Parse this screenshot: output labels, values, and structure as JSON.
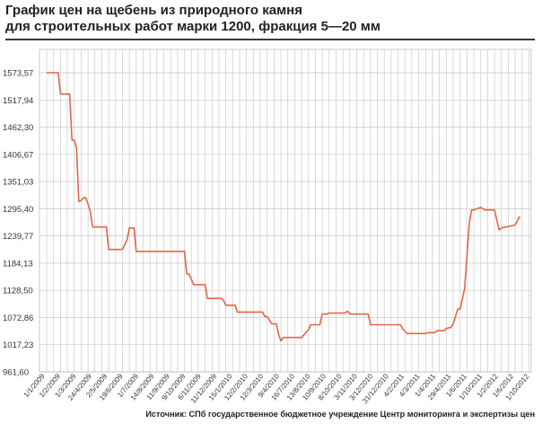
{
  "chart_data": {
    "type": "line",
    "title": "График цен на щебень из природного камня\nдля строительных работ марки 1200, фракция 5—20 мм",
    "title_lines": [
      "График цен на щебень из природного камня",
      "для строительных работ марки 1200, фракция 5—20 мм"
    ],
    "xlabel": "",
    "ylabel": "",
    "ylim": [
      961.6,
      1597.0
    ],
    "y_ticks": [
      "961,60",
      "1017,23",
      "1072,86",
      "1128,50",
      "1184,13",
      "1239,77",
      "1295,40",
      "1351,03",
      "1406,67",
      "1462,30",
      "1517,94",
      "1573,57"
    ],
    "y_tick_values": [
      961.6,
      1017.23,
      1072.86,
      1128.5,
      1184.13,
      1239.77,
      1295.4,
      1351.03,
      1406.67,
      1462.3,
      1517.94,
      1573.57
    ],
    "x_ticks": [
      "1/1/2009",
      "1/2/2009",
      "1/3/2009",
      "24/4/2009",
      "2/5/2009",
      "19/6/2009",
      "1/7/2009",
      "14/8/2009",
      "11/9/2009",
      "9/10/2009",
      "6/11/2009",
      "11/12/2009",
      "15/1/2010",
      "12/2/2010",
      "12/3/2010",
      "9/4/2010",
      "16/7/2010",
      "13/8/2010",
      "10/9/2010",
      "8/10/2010",
      "3/11/2010",
      "3/12/2010",
      "31/12/2010",
      "4/2/2011",
      "4/3/2011",
      "1/4/2011",
      "29/4/2011",
      "1/6/2011",
      "1/10/2011",
      "1/2/2012",
      "1/6/2012",
      "1/10/2012"
    ],
    "grid": true,
    "legend": "none",
    "series_color": "#e0664a",
    "grid_color": "#c9c9c9",
    "n_points": 212,
    "series": [
      {
        "name": "",
        "points": [
          [
            0,
            1573.6
          ],
          [
            5,
            1573.6
          ],
          [
            6,
            1530
          ],
          [
            10,
            1530
          ],
          [
            11,
            1436
          ],
          [
            12,
            1436
          ],
          [
            13,
            1420
          ],
          [
            14,
            1310
          ],
          [
            15,
            1312
          ],
          [
            16,
            1318
          ],
          [
            17,
            1318
          ],
          [
            18,
            1305
          ],
          [
            19,
            1290
          ],
          [
            20,
            1258
          ],
          [
            26,
            1258
          ],
          [
            27,
            1212
          ],
          [
            33,
            1212
          ],
          [
            35,
            1232
          ],
          [
            36,
            1256
          ],
          [
            38,
            1256
          ],
          [
            39,
            1208
          ],
          [
            60,
            1208
          ],
          [
            61,
            1162
          ],
          [
            62,
            1162
          ],
          [
            64,
            1140
          ],
          [
            69,
            1140
          ],
          [
            70,
            1112
          ],
          [
            76,
            1112
          ],
          [
            77,
            1108
          ],
          [
            78,
            1098
          ],
          [
            82,
            1098
          ],
          [
            83,
            1084
          ],
          [
            94,
            1084
          ],
          [
            95,
            1075
          ],
          [
            96,
            1075
          ],
          [
            98,
            1060
          ],
          [
            100,
            1060
          ],
          [
            101,
            1038
          ],
          [
            102,
            1025
          ],
          [
            103,
            1032
          ],
          [
            104,
            1032
          ],
          [
            105,
            1032
          ],
          [
            111,
            1032
          ],
          [
            114,
            1048
          ],
          [
            115,
            1058
          ],
          [
            119,
            1058
          ],
          [
            120,
            1080
          ],
          [
            122,
            1080
          ],
          [
            123,
            1082
          ],
          [
            130,
            1082
          ],
          [
            131,
            1086
          ],
          [
            132,
            1080
          ],
          [
            140,
            1080
          ],
          [
            141,
            1058
          ],
          [
            154,
            1058
          ],
          [
            155,
            1050
          ],
          [
            157,
            1040
          ],
          [
            165,
            1040
          ],
          [
            166,
            1042
          ],
          [
            169,
            1042
          ],
          [
            170,
            1046
          ],
          [
            173,
            1046
          ],
          [
            174,
            1050
          ],
          [
            175,
            1052
          ],
          [
            176,
            1052
          ],
          [
            177,
            1060
          ],
          [
            179,
            1090
          ],
          [
            180,
            1090
          ],
          [
            182,
            1132
          ],
          [
            184,
            1265
          ],
          [
            185,
            1293
          ],
          [
            186,
            1293
          ],
          [
            187,
            1295
          ],
          [
            189,
            1298
          ],
          [
            190,
            1295
          ],
          [
            191,
            1293
          ],
          [
            195,
            1293
          ],
          [
            197,
            1252
          ],
          [
            198,
            1256
          ],
          [
            204,
            1262
          ],
          [
            206,
            1280
          ]
        ]
      }
    ]
  },
  "source_text": "Источник: СПб государственное бюджетное учреждение Центр мониторинга и экспертизы цен"
}
